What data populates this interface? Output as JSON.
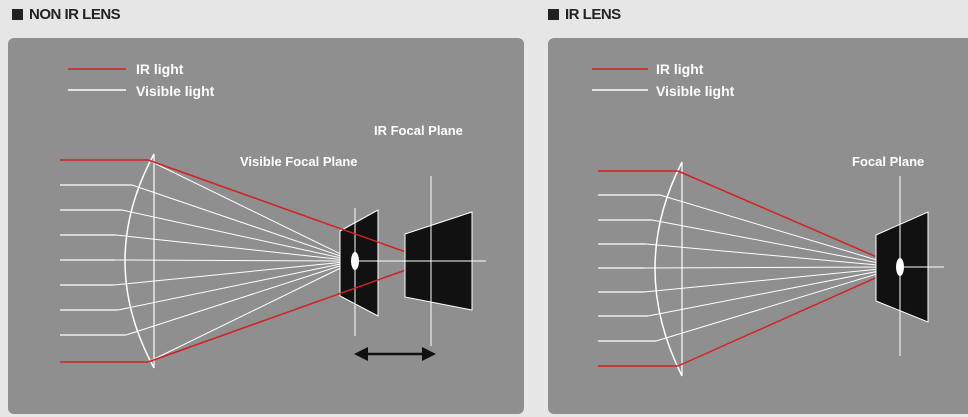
{
  "left_panel": {
    "title": "NON IR LENS",
    "legend": {
      "ir": "IR light",
      "visible": "Visible light"
    },
    "labels": {
      "ir_focal": "IR Focal Plane",
      "visible_focal": "Visible Focal Plane"
    }
  },
  "right_panel": {
    "title": "IR LENS",
    "legend": {
      "ir": "IR light",
      "visible": "Visible light"
    },
    "labels": {
      "focal": "Focal Plane"
    }
  },
  "colors": {
    "ir": "#d42020",
    "visible": "#ffffff",
    "panel": "#8f8f8f",
    "sensor": "#111111"
  }
}
